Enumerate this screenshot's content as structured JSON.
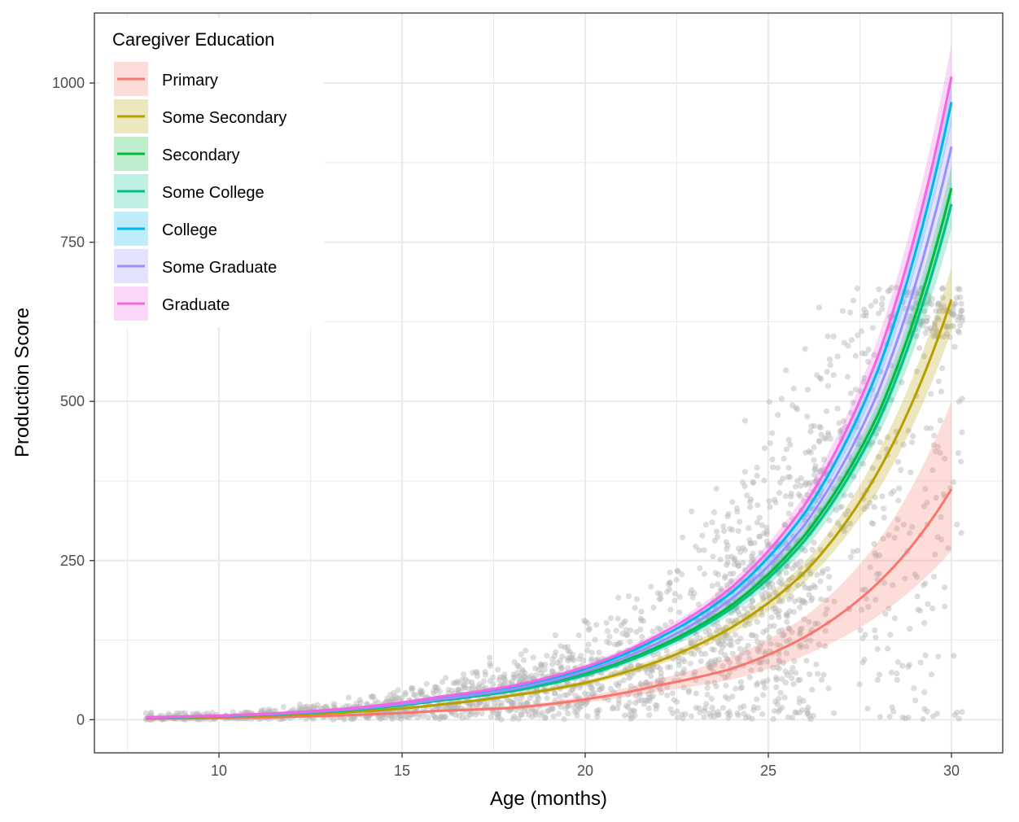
{
  "chart_data": {
    "type": "line",
    "xlabel": "Age (months)",
    "ylabel": "Production Score",
    "xlim": [
      6.6,
      31.4
    ],
    "ylim": [
      -52,
      1110
    ],
    "x_ticks": [
      10,
      15,
      20,
      25,
      30
    ],
    "y_ticks": [
      0,
      250,
      500,
      750,
      1000
    ],
    "grid": true,
    "legend": {
      "title": "Caregiver Education",
      "placement": "top-left"
    },
    "fit_x_range": [
      8,
      30
    ],
    "series": [
      {
        "name": "Primary",
        "color": "#F8766D",
        "x": [
          8,
          10,
          12,
          14,
          16,
          18,
          20,
          22,
          24,
          26,
          28,
          30
        ],
        "y": [
          1.6,
          2.7,
          4.7,
          8.1,
          13.9,
          18.5,
          32,
          54,
          80,
          130,
          215,
          362
        ],
        "band_lower": [
          1.2,
          2.1,
          3.8,
          6.7,
          11.8,
          15.7,
          27,
          44,
          63,
          101,
          163,
          265
        ],
        "band_upper": [
          2.1,
          3.4,
          5.8,
          9.7,
          16.2,
          21.5,
          37,
          64,
          99,
          162,
          280,
          500
        ]
      },
      {
        "name": "Some Secondary",
        "color": "#B79F00",
        "x": [
          8,
          10,
          12,
          14,
          16,
          18,
          20,
          22,
          24,
          26,
          28,
          30
        ],
        "y": [
          2.4,
          4.3,
          7.6,
          13.4,
          23.5,
          38,
          58,
          92,
          145,
          232,
          390,
          660
        ],
        "band_lower": [
          2.1,
          3.8,
          6.8,
          12.1,
          21.4,
          35,
          54,
          86,
          135,
          216,
          360,
          610
        ],
        "band_upper": [
          2.7,
          4.8,
          8.4,
          14.7,
          25.6,
          41,
          62,
          98,
          155,
          248,
          420,
          710
        ]
      },
      {
        "name": "Secondary",
        "color": "#00BA38",
        "x": [
          8,
          10,
          12,
          14,
          16,
          18,
          20,
          22,
          24,
          26,
          28,
          30
        ],
        "y": [
          3.1,
          5.5,
          9.8,
          17.5,
          31,
          46,
          72,
          115,
          180,
          290,
          480,
          835
        ],
        "band_lower": [
          2.8,
          5.0,
          9.0,
          16.3,
          29,
          43,
          68,
          109,
          172,
          277,
          460,
          800
        ],
        "band_upper": [
          3.4,
          6.0,
          10.6,
          18.7,
          33,
          49,
          76,
          121,
          188,
          303,
          500,
          870
        ]
      },
      {
        "name": "Some College",
        "color": "#00C08B",
        "x": [
          8,
          10,
          12,
          14,
          16,
          18,
          20,
          22,
          24,
          26,
          28,
          30
        ],
        "y": [
          3.0,
          5.3,
          9.5,
          17.0,
          30,
          45,
          70,
          112,
          175,
          282,
          468,
          810
        ],
        "band_lower": [
          2.7,
          4.9,
          8.8,
          15.8,
          28,
          42,
          66,
          106,
          166,
          268,
          445,
          770
        ],
        "band_upper": [
          3.3,
          5.8,
          10.3,
          18.2,
          32,
          48,
          74,
          118,
          184,
          296,
          490,
          850
        ]
      },
      {
        "name": "College",
        "color": "#00B4F0",
        "x": [
          8,
          10,
          12,
          14,
          16,
          18,
          20,
          22,
          24,
          26,
          28,
          30
        ],
        "y": [
          3.5,
          6.2,
          11.0,
          19.5,
          34,
          51,
          80,
          128,
          200,
          325,
          550,
          970
        ],
        "band_lower": [
          3.2,
          5.8,
          10.3,
          18.4,
          32,
          48,
          76,
          122,
          192,
          312,
          530,
          935
        ],
        "band_upper": [
          3.8,
          6.6,
          11.7,
          20.6,
          36,
          54,
          84,
          134,
          208,
          338,
          570,
          1005
        ]
      },
      {
        "name": "Some Graduate",
        "color": "#9590FF",
        "x": [
          8,
          10,
          12,
          14,
          16,
          18,
          20,
          22,
          24,
          26,
          28,
          30
        ],
        "y": [
          3.3,
          5.8,
          10.4,
          18.4,
          32,
          48,
          76,
          121,
          190,
          307,
          515,
          900
        ],
        "band_lower": [
          2.9,
          5.2,
          9.4,
          16.9,
          30,
          45,
          71,
          114,
          179,
          290,
          487,
          850
        ],
        "band_upper": [
          3.7,
          6.4,
          11.4,
          19.9,
          34,
          51,
          81,
          128,
          201,
          324,
          543,
          950
        ]
      },
      {
        "name": "Graduate",
        "color": "#F564E3",
        "x": [
          8,
          10,
          12,
          14,
          16,
          18,
          20,
          22,
          24,
          26,
          28,
          30
        ],
        "y": [
          3.7,
          6.5,
          11.5,
          20.4,
          36,
          53,
          83,
          133,
          208,
          338,
          572,
          1010
        ],
        "band_lower": [
          3.3,
          5.9,
          10.6,
          19.0,
          34,
          50,
          79,
          127,
          198,
          322,
          545,
          960
        ],
        "band_upper": [
          4.1,
          7.1,
          12.4,
          21.8,
          38,
          56,
          87,
          139,
          218,
          354,
          600,
          1060
        ]
      }
    ],
    "scatter_color": "#b3b3b3"
  }
}
